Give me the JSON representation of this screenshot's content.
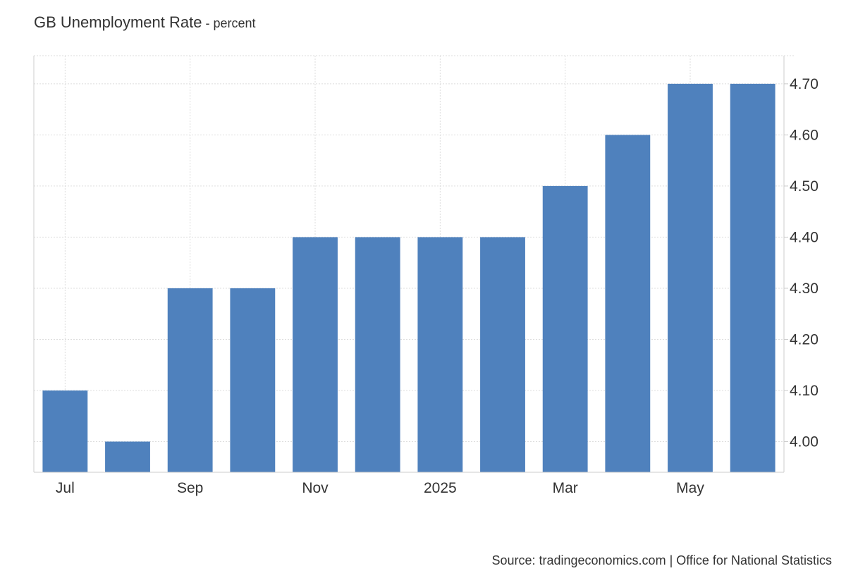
{
  "chart_data": {
    "type": "bar",
    "title": "GB Unemployment Rate",
    "unit": "percent",
    "unit_separator": " - ",
    "source": "Source: tradingeconomics.com | Office for National Statistics",
    "categories": [
      "2024-07",
      "2024-08",
      "2024-09",
      "2024-10",
      "2024-11",
      "2024-12",
      "2025-01",
      "2025-02",
      "2025-03",
      "2025-04",
      "2025-05",
      "2025-06"
    ],
    "values": [
      4.1,
      4.0,
      4.3,
      4.3,
      4.4,
      4.4,
      4.4,
      4.4,
      4.5,
      4.6,
      4.7,
      4.7
    ],
    "x_tick_labels": [
      {
        "category": "2024-07",
        "label": "Jul"
      },
      {
        "category": "2024-09",
        "label": "Sep"
      },
      {
        "category": "2024-11",
        "label": "Nov"
      },
      {
        "category": "2025-01",
        "label": "2025"
      },
      {
        "category": "2025-03",
        "label": "Mar"
      },
      {
        "category": "2025-05",
        "label": "May"
      }
    ],
    "y_ticks": [
      4.0,
      4.1,
      4.2,
      4.3,
      4.4,
      4.5,
      4.6,
      4.7
    ],
    "y_tick_labels": [
      "4.00",
      "4.10",
      "4.20",
      "4.30",
      "4.40",
      "4.50",
      "4.60",
      "4.70"
    ],
    "ylim": [
      3.94,
      4.755
    ],
    "y_axis_side": "right",
    "grid": true,
    "legend": "none",
    "bar_color": "#4f81bd",
    "grid_color": "#dddddd",
    "axis_color": "#cccccc"
  }
}
